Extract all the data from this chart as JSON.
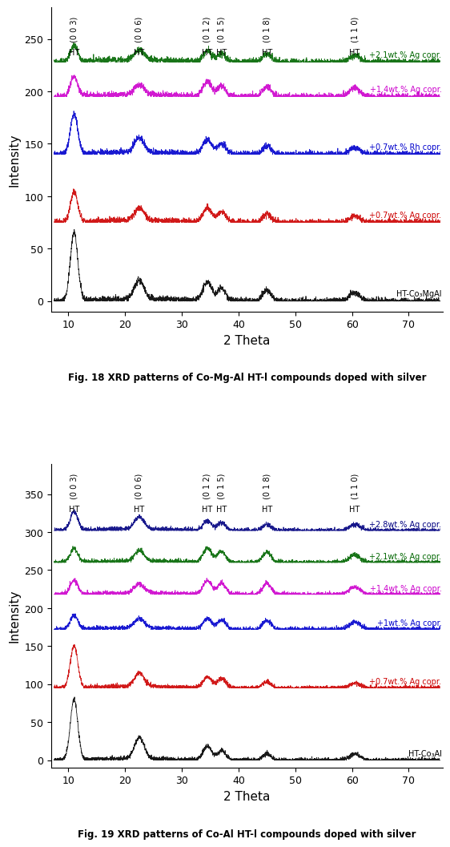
{
  "fig_width": 5.75,
  "fig_height": 10.66,
  "dpi": 100,
  "background_color": "#ffffff",
  "plot1": {
    "xlabel": "2 Theta",
    "ylabel": "Intensity",
    "xlim": [
      7,
      76
    ],
    "ylim": [
      -10,
      280
    ],
    "xticks": [
      10,
      20,
      30,
      40,
      50,
      60,
      70
    ],
    "yticks": [
      0,
      50,
      100,
      150,
      200,
      250
    ],
    "caption": "Fig. 18 XRD patterns of Co-Mg-Al HT-l compounds doped with silver",
    "peak_positions": [
      11.0,
      22.5,
      34.5,
      37.0,
      45.0,
      60.5
    ],
    "hkl_labels": [
      "(0 0 3)",
      "(0 0 6)",
      "(0 1 2)",
      "(0 1 5)",
      "(0 1 8)",
      "(1 1 0)"
    ],
    "hkl_x": [
      11.0,
      22.5,
      34.5,
      37.0,
      45.0,
      60.5
    ],
    "series": [
      {
        "label": "HT-Co₃MgAl",
        "color": "#000000",
        "baseline": 0,
        "label_color": "#000000",
        "ph": [
          65,
          18,
          18,
          12,
          10,
          8
        ]
      },
      {
        "label": "+0.7wt.% Ag copr.",
        "color": "#cc0000",
        "baseline": 75,
        "label_color": "#cc0000",
        "ph": [
          28,
          12,
          14,
          10,
          8,
          6
        ]
      },
      {
        "label": "+0.7wt.% Rh copr.",
        "color": "#0000cc",
        "baseline": 140,
        "label_color": "#0000cc",
        "ph": [
          38,
          14,
          14,
          10,
          8,
          6
        ]
      },
      {
        "label": "+1.4wt.% Ag copr.",
        "color": "#cc00cc",
        "baseline": 195,
        "label_color": "#cc00cc",
        "ph": [
          18,
          10,
          14,
          10,
          10,
          8
        ]
      },
      {
        "label": "+2.1wt.% Ag copr.",
        "color": "#006600",
        "baseline": 228,
        "label_color": "#006600",
        "ph": [
          15,
          10,
          10,
          8,
          8,
          6
        ]
      }
    ]
  },
  "plot2": {
    "xlabel": "2 Theta",
    "ylabel": "Intensity",
    "xlim": [
      7,
      76
    ],
    "ylim": [
      -10,
      390
    ],
    "xticks": [
      10,
      20,
      30,
      40,
      50,
      60,
      70
    ],
    "yticks": [
      0,
      50,
      100,
      150,
      200,
      250,
      300,
      350
    ],
    "caption": "Fig. 19 XRD patterns of Co-Al HT-l compounds doped with silver",
    "peak_positions": [
      11.0,
      22.5,
      34.5,
      37.0,
      45.0,
      60.5
    ],
    "hkl_labels": [
      "(0 0 3)",
      "(0 0 6)",
      "(0 1 2)",
      "(0 1 5)",
      "(0 1 8)",
      "(1 1 0)"
    ],
    "hkl_x": [
      11.0,
      22.5,
      34.5,
      37.0,
      45.0,
      60.5
    ],
    "series": [
      {
        "label": "HT-Co₃Al",
        "color": "#000000",
        "baseline": 0,
        "label_color": "#000000",
        "ph": [
          80,
          28,
          18,
          12,
          8,
          8
        ]
      },
      {
        "label": "+0.7wt.% Ag copr.",
        "color": "#cc0000",
        "baseline": 95,
        "label_color": "#cc0000",
        "ph": [
          55,
          18,
          14,
          12,
          8,
          6
        ]
      },
      {
        "label": "+1wt.% Ag copr.",
        "color": "#0000cc",
        "baseline": 172,
        "label_color": "#0000cc",
        "ph": [
          18,
          12,
          14,
          12,
          12,
          10
        ]
      },
      {
        "label": "+1.4wt.% Ag copr.",
        "color": "#cc00cc",
        "baseline": 218,
        "label_color": "#cc00cc",
        "ph": [
          18,
          12,
          18,
          14,
          14,
          10
        ]
      },
      {
        "label": "+2.1wt.% Ag copr.",
        "color": "#006600",
        "baseline": 260,
        "label_color": "#006600",
        "ph": [
          18,
          14,
          18,
          14,
          14,
          10
        ]
      },
      {
        "label": "+2.8wt.% Ag copr.",
        "color": "#000080",
        "baseline": 302,
        "label_color": "#000080",
        "ph": [
          25,
          16,
          12,
          10,
          8,
          8
        ]
      }
    ]
  }
}
